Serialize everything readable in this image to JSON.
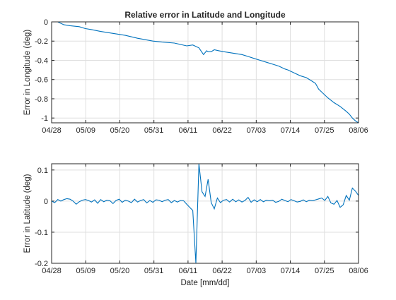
{
  "chart_data": [
    {
      "type": "line",
      "title": "Relative error in Latitude and Longitude",
      "xlabel": "",
      "ylabel": "Error in Longitude (deg)",
      "grid": true,
      "x_tick_labels": [
        "04/28",
        "05/09",
        "05/20",
        "05/31",
        "06/11",
        "06/22",
        "07/03",
        "07/14",
        "07/25",
        "08/06"
      ],
      "xlim": [
        0,
        100
      ],
      "ylim": [
        -1.05,
        0
      ],
      "y_ticks": [
        0,
        -0.2,
        -0.4,
        -0.6,
        -0.8,
        -1
      ],
      "y_tick_labels": [
        "0",
        "-0.2",
        "-0.4",
        "-0.6",
        "-0.8",
        "-1"
      ],
      "series": [
        {
          "color": "#0072bd",
          "x": [
            0,
            2,
            4,
            6,
            9,
            11,
            13,
            16,
            20,
            24,
            28,
            33,
            36,
            40,
            44,
            46,
            48,
            49.5,
            50.5,
            51,
            52,
            53,
            54.5,
            56,
            58,
            60,
            62,
            64,
            66,
            68,
            70,
            72,
            74,
            76,
            77,
            79,
            81,
            83,
            85,
            86,
            87,
            88,
            90,
            92,
            94,
            96,
            97,
            98,
            99,
            100
          ],
          "y": [
            0,
            0,
            -0.03,
            -0.04,
            -0.05,
            -0.07,
            -0.08,
            -0.1,
            -0.12,
            -0.14,
            -0.17,
            -0.2,
            -0.21,
            -0.22,
            -0.25,
            -0.24,
            -0.27,
            -0.34,
            -0.3,
            -0.31,
            -0.31,
            -0.29,
            -0.3,
            -0.31,
            -0.32,
            -0.33,
            -0.34,
            -0.36,
            -0.38,
            -0.4,
            -0.42,
            -0.44,
            -0.46,
            -0.49,
            -0.5,
            -0.53,
            -0.56,
            -0.58,
            -0.62,
            -0.64,
            -0.7,
            -0.73,
            -0.79,
            -0.84,
            -0.88,
            -0.93,
            -0.96,
            -1,
            -1.03,
            -1.05
          ]
        }
      ]
    },
    {
      "type": "line",
      "title": "",
      "xlabel": "Date [mm/dd]",
      "ylabel": "Error in Latitude  (deg)",
      "grid": true,
      "x_tick_labels": [
        "04/28",
        "05/09",
        "05/20",
        "05/31",
        "06/11",
        "06/22",
        "07/03",
        "07/14",
        "07/25",
        "08/06"
      ],
      "xlim": [
        0,
        100
      ],
      "ylim": [
        -0.2,
        0.12
      ],
      "y_ticks": [
        0.1,
        0,
        -0.1,
        -0.2
      ],
      "y_tick_labels": [
        "0.1",
        "0",
        "-0.1",
        "-0.2"
      ],
      "series": [
        {
          "color": "#0072bd",
          "x": [
            0,
            1,
            2,
            3,
            4,
            5,
            6,
            7,
            8,
            9,
            10,
            11,
            12,
            13,
            14,
            15,
            16,
            17,
            18,
            19,
            20,
            21,
            22,
            23,
            24,
            25,
            26,
            27,
            28,
            29,
            30,
            31,
            32,
            33,
            34,
            35,
            36,
            37,
            38,
            39,
            40,
            41,
            42,
            43,
            44,
            45,
            46,
            47,
            48,
            49,
            50,
            51,
            52,
            53,
            54,
            55,
            56,
            57,
            58,
            59,
            60,
            61,
            62,
            63,
            64,
            65,
            66,
            67,
            68,
            69,
            70,
            71,
            72,
            73,
            74,
            75,
            76,
            77,
            78,
            79,
            80,
            81,
            82,
            83,
            84,
            85,
            86,
            87,
            88,
            89,
            90,
            91,
            92,
            93,
            94,
            95,
            96,
            97,
            98,
            99,
            100
          ],
          "y": [
            0,
            -0.005,
            0.005,
            0,
            0.005,
            0.008,
            0.006,
            0,
            -0.01,
            -0.002,
            0.003,
            0.005,
            0.002,
            -0.003,
            0.004,
            -0.007,
            0.005,
            -0.002,
            0.003,
            0.001,
            -0.008,
            0.002,
            0.006,
            -0.004,
            0.003,
            0,
            -0.005,
            0.006,
            -0.003,
            0.002,
            0.005,
            -0.006,
            0.002,
            -0.004,
            0.004,
            0.003,
            -0.002,
            0.003,
            0.005,
            -0.005,
            0.002,
            -0.003,
            0.002,
            0.001,
            -0.01,
            -0.02,
            -0.03,
            -0.2,
            0.12,
            0.03,
            0.015,
            0.07,
            -0.005,
            -0.025,
            0.01,
            -0.005,
            0.003,
            0.005,
            -0.003,
            0.006,
            -0.002,
            0.004,
            -0.003,
            0.002,
            0.012,
            -0.004,
            0.004,
            -0.002,
            0.005,
            -0.002,
            0.003,
            0.001,
            0.003,
            -0.004,
            -0.001,
            0.006,
            0.002,
            -0.002,
            0.005,
            0.001,
            -0.003,
            -0.001,
            0.004,
            -0.002,
            0.003,
            0.001,
            0.004,
            0.007,
            0.01,
            0.002,
            0.015,
            -0.006,
            -0.01,
            0.002,
            -0.02,
            -0.012,
            0.018,
            0.003,
            0.042,
            0.032,
            0.018
          ]
        }
      ]
    }
  ]
}
